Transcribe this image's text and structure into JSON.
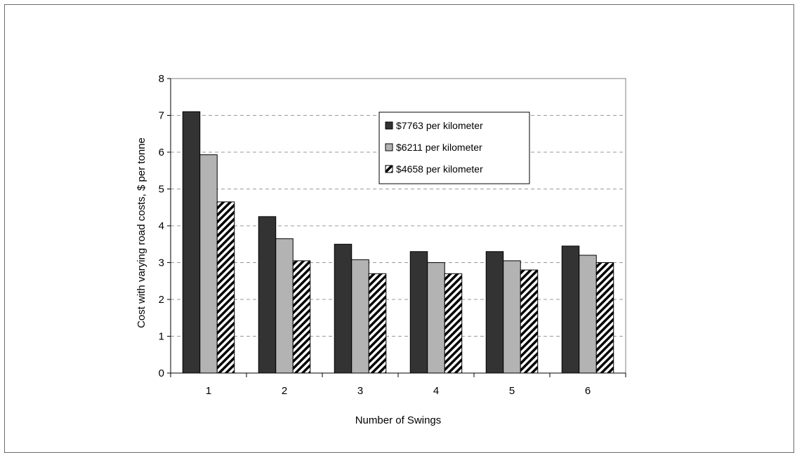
{
  "chart_data": {
    "type": "bar",
    "title": "",
    "xlabel": "Number of Swings",
    "ylabel": "Cost with varying road costs, $ per tonne",
    "categories": [
      "1",
      "2",
      "3",
      "4",
      "5",
      "6"
    ],
    "ylim": [
      0,
      8
    ],
    "yticks": [
      "0",
      "1",
      "2",
      "3",
      "4",
      "5",
      "6",
      "7",
      "8"
    ],
    "grid": true,
    "legend_position": "top-right",
    "series": [
      {
        "name": "$7763 per kilometer",
        "values": [
          7.1,
          4.25,
          3.5,
          3.3,
          3.3,
          3.45
        ],
        "color": "#333333",
        "pattern": "solid"
      },
      {
        "name": "$6211 per kilometer",
        "values": [
          5.93,
          3.65,
          3.08,
          3.0,
          3.05,
          3.2
        ],
        "color": "#b3b3b3",
        "pattern": "solid"
      },
      {
        "name": "$4658 per kilometer",
        "values": [
          4.65,
          3.05,
          2.7,
          2.7,
          2.8,
          3.0
        ],
        "color": "#000000",
        "pattern": "diagonal-stripes"
      }
    ]
  }
}
